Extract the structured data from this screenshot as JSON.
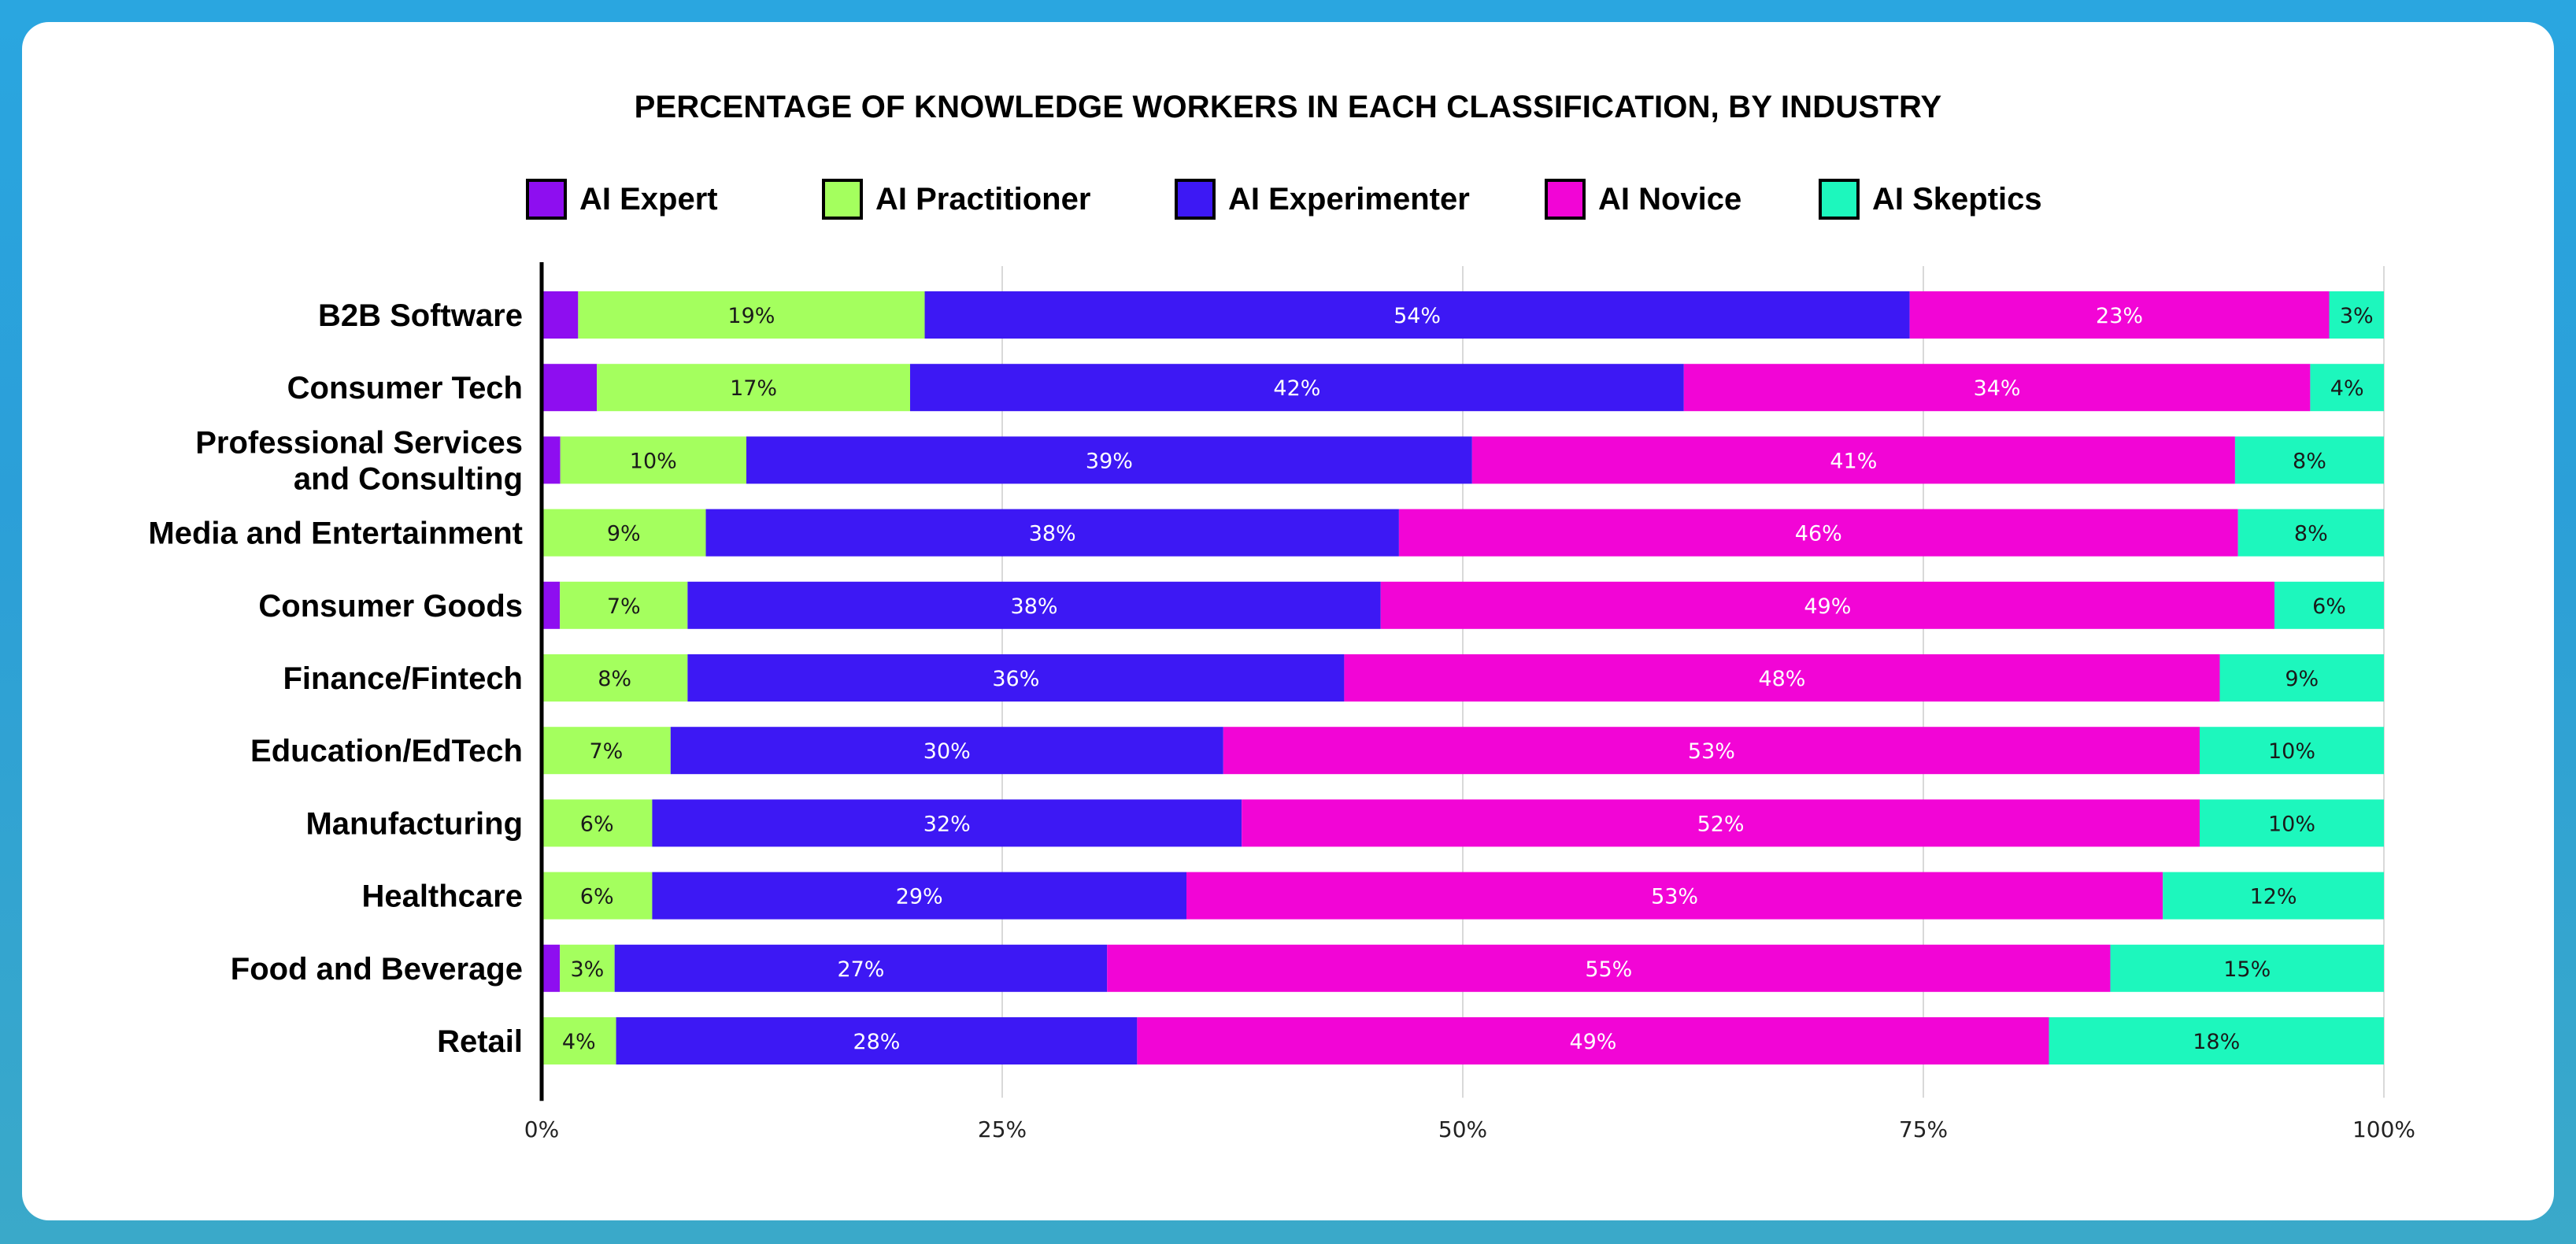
{
  "chart_data": {
    "type": "bar",
    "orientation": "horizontal",
    "stacked": true,
    "title": "PERCENTAGE OF KNOWLEDGE WORKERS IN EACH CLASSIFICATION, BY INDUSTRY",
    "xlabel": "",
    "ylabel": "",
    "xlim": [
      0,
      100
    ],
    "x_ticks": [
      "0%",
      "25%",
      "50%",
      "75%",
      "100%"
    ],
    "grid": true,
    "legend_position": "top",
    "categories": [
      "B2B Software",
      "Consumer Tech",
      "Professional Services\nand Consulting",
      "Media and Entertainment",
      "Consumer Goods",
      "Finance/Fintech",
      "Education/EdTech",
      "Manufacturing",
      "Healthcare",
      "Food and Beverage",
      "Retail"
    ],
    "series": [
      {
        "name": "AI Expert",
        "color": "#8e0ef0",
        "values": [
          2,
          3,
          1,
          0,
          1,
          0,
          0,
          0,
          0,
          1,
          0
        ],
        "labels": [
          "",
          "",
          "",
          "",
          "",
          "",
          "",
          "",
          "",
          "",
          ""
        ]
      },
      {
        "name": "AI Practitioner",
        "color": "#a4ff5e",
        "values": [
          19,
          17,
          10,
          9,
          7,
          8,
          7,
          6,
          6,
          3,
          4
        ],
        "labels": [
          "19%",
          "17%",
          "10%",
          "9%",
          "7%",
          "8%",
          "7%",
          "6%",
          "6%",
          "3%",
          "4%"
        ]
      },
      {
        "name": "AI Experimenter",
        "color": "#3d18f4",
        "values": [
          54,
          42,
          39,
          38,
          38,
          36,
          30,
          32,
          29,
          27,
          28
        ],
        "labels": [
          "54%",
          "42%",
          "39%",
          "38%",
          "38%",
          "36%",
          "30%",
          "32%",
          "29%",
          "27%",
          "28%"
        ]
      },
      {
        "name": "AI Novice",
        "color": "#f205d6",
        "values": [
          23,
          34,
          41,
          46,
          49,
          48,
          53,
          52,
          53,
          55,
          49
        ],
        "labels": [
          "23%",
          "34%",
          "41%",
          "46%",
          "49%",
          "48%",
          "53%",
          "52%",
          "53%",
          "55%",
          "49%"
        ]
      },
      {
        "name": "AI Skeptics",
        "color": "#1df7bd",
        "values": [
          3,
          4,
          8,
          8,
          6,
          9,
          10,
          10,
          12,
          15,
          18
        ],
        "labels": [
          "3%",
          "4%",
          "8%",
          "8%",
          "6%",
          "9%",
          "10%",
          "10%",
          "12%",
          "15%",
          "18%"
        ]
      }
    ]
  }
}
